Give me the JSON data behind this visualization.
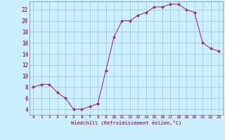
{
  "x": [
    0,
    1,
    2,
    3,
    4,
    5,
    6,
    7,
    8,
    9,
    10,
    11,
    12,
    13,
    14,
    15,
    16,
    17,
    18,
    19,
    20,
    21,
    22,
    23
  ],
  "y": [
    8,
    8.5,
    8.5,
    7,
    6,
    4,
    4,
    4.5,
    5,
    11,
    17,
    20,
    20,
    21,
    21.5,
    22.5,
    22.5,
    23,
    23,
    22,
    21.5,
    16,
    15,
    14.5
  ],
  "line_color": "#993399",
  "marker": "D",
  "marker_size": 2,
  "bg_color": "#cceeff",
  "grid_color": "#aacccc",
  "xlabel": "Windchill (Refroidissement éolien,°C)",
  "xlabel_color": "#993399",
  "ylabel_ticks": [
    4,
    6,
    8,
    10,
    12,
    14,
    16,
    18,
    20,
    22
  ],
  "ylim": [
    3,
    23.5
  ],
  "xlim": [
    -0.5,
    23.5
  ],
  "xticks": [
    0,
    1,
    2,
    3,
    4,
    5,
    6,
    7,
    8,
    9,
    10,
    11,
    12,
    13,
    14,
    15,
    16,
    17,
    18,
    19,
    20,
    21,
    22,
    23
  ],
  "tick_color": "#993399",
  "tick_fontsize": 4.5,
  "xlabel_fontsize": 5.0,
  "ytick_fontsize": 5.5
}
